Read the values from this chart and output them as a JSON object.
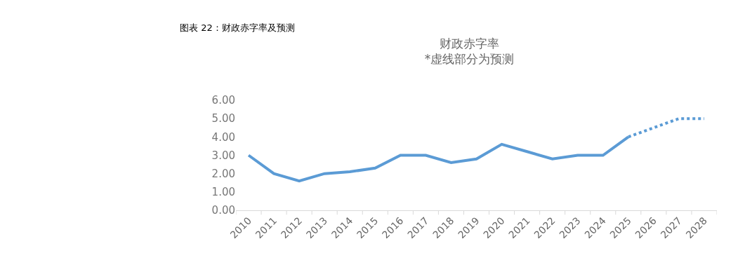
{
  "chart_data": {
    "type": "line",
    "title": "财政赤字率",
    "subtitle": "*虚线部分为预测",
    "annotations": [
      "图表 22：财政赤字率及预测"
    ],
    "categories": [
      "2010",
      "2011",
      "2012",
      "2013",
      "2014",
      "2015",
      "2016",
      "2017",
      "2018",
      "2019",
      "2020",
      "2021",
      "2022",
      "2023",
      "2024",
      "2025",
      "2026",
      "2027",
      "2028"
    ],
    "series": [
      {
        "color": "#5b9bd5",
        "line_style": "solid",
        "values": [
          3.0,
          2.0,
          1.6,
          2.0,
          2.1,
          2.3,
          3.0,
          3.0,
          2.6,
          2.8,
          3.6,
          3.2,
          2.8,
          3.0,
          3.0,
          4.0,
          null,
          null,
          null
        ]
      },
      {
        "color": "#5b9bd5",
        "line_style": "dotted",
        "values": [
          null,
          null,
          null,
          null,
          null,
          null,
          null,
          null,
          null,
          null,
          null,
          null,
          null,
          null,
          null,
          4.0,
          4.5,
          5.0,
          5.0
        ]
      }
    ],
    "ylim": [
      0,
      6
    ],
    "yticks": [
      {
        "value": 0,
        "label": "0.00"
      },
      {
        "value": 1,
        "label": "1.00"
      },
      {
        "value": 2,
        "label": "2.00"
      },
      {
        "value": 3,
        "label": "3.00"
      },
      {
        "value": 4,
        "label": "4.00"
      },
      {
        "value": 5,
        "label": "5.00"
      },
      {
        "value": 6,
        "label": "6.00"
      }
    ],
    "marker": "none"
  }
}
